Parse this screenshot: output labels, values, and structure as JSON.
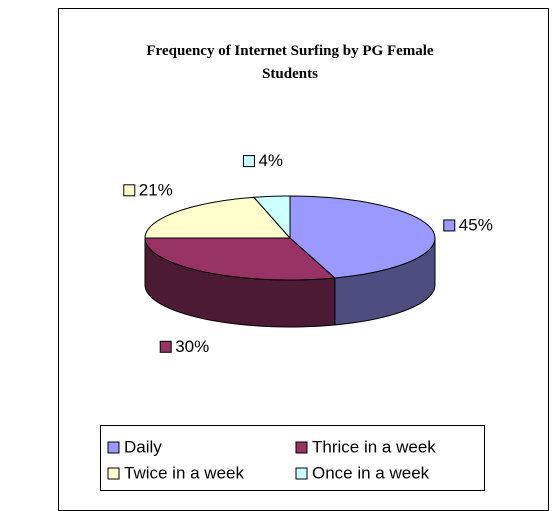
{
  "chart_data": {
    "type": "pie3d",
    "title": "Frequency of Internet Surfing by PG Female Students",
    "categories": [
      "Daily",
      "Thrice in a week",
      "Twice in a week",
      "Once in a week"
    ],
    "values": [
      45,
      30,
      21,
      4
    ],
    "value_labels": [
      "45%",
      "30%",
      "21%",
      "4%"
    ],
    "colors": [
      "#9999ff",
      "#993366",
      "#ffffcc",
      "#ccffff"
    ],
    "legend": "bottom"
  }
}
